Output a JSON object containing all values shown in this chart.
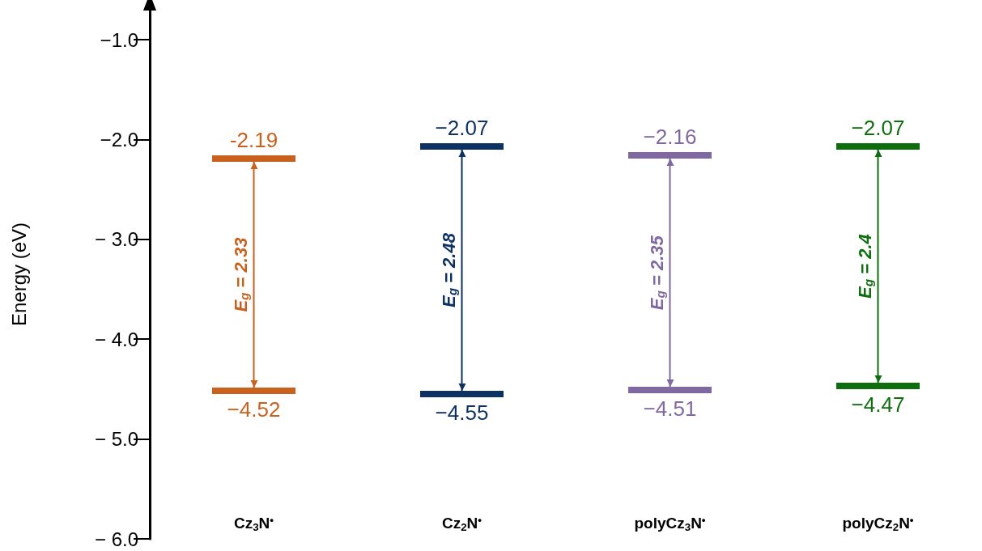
{
  "chart_data": {
    "type": "bar",
    "ylabel": "Energy (eV)",
    "categories": [
      "Cz$_{3}$N$^{•}$",
      "Cz$_{2}$N$^{•}$",
      "polyCz$_{3}$N$^{•}$",
      "polyCz$_{2}$N$^{•}$"
    ],
    "base": [
      -4.52,
      -4.55,
      -4.51,
      -4.47
    ],
    "values": [
      2.33,
      2.48,
      2.35,
      2.4
    ],
    "colors": [
      "#c8611e",
      "#0d3163",
      "#8068a0",
      "#0e6e0e"
    ],
    "value_labels": [
      "E$_{g}$ = 2.33",
      "E$_{g}$ = 2.48",
      "E$_{g}$ = 2.35",
      "E$_{g}$ = 2.4"
    ],
    "ylim": [
      -6,
      -0.7
    ],
    "yticks": [
      {
        "value": -6,
        "label": "− 6.0"
      },
      {
        "value": -5,
        "label": "− 5.0"
      },
      {
        "value": -4,
        "label": "− 4.0"
      },
      {
        "value": -3,
        "label": "− 3.0"
      },
      {
        "value": -2,
        "label": "−2.0"
      },
      {
        "value": -1,
        "label": "−1.0"
      }
    ],
    "grid": false,
    "annotations": [
      {
        "text": "-2.19",
        "x": "Cz$_{3}$N$^{•}$",
        "y": -2.19
      },
      {
        "text": "−4.52",
        "x": "Cz$_{3}$N$^{•}$",
        "y": -4.52
      },
      {
        "text": "−2.07",
        "x": "Cz$_{2}$N$^{•}$",
        "y": -2.07
      },
      {
        "text": "−4.55",
        "x": "Cz$_{2}$N$^{•}$",
        "y": -4.55
      },
      {
        "text": "−2.16",
        "x": "polyCz$_{3}$N$^{•}$",
        "y": -2.16
      },
      {
        "text": "−4.51",
        "x": "polyCz$_{3}$N$^{•}$",
        "y": -4.51
      },
      {
        "text": "−2.07",
        "x": "polyCz$_{2}$N$^{•}$",
        "y": -2.07
      },
      {
        "text": "−4.47",
        "x": "polyCz$_{2}$N$^{•}$",
        "y": -4.47
      }
    ]
  }
}
